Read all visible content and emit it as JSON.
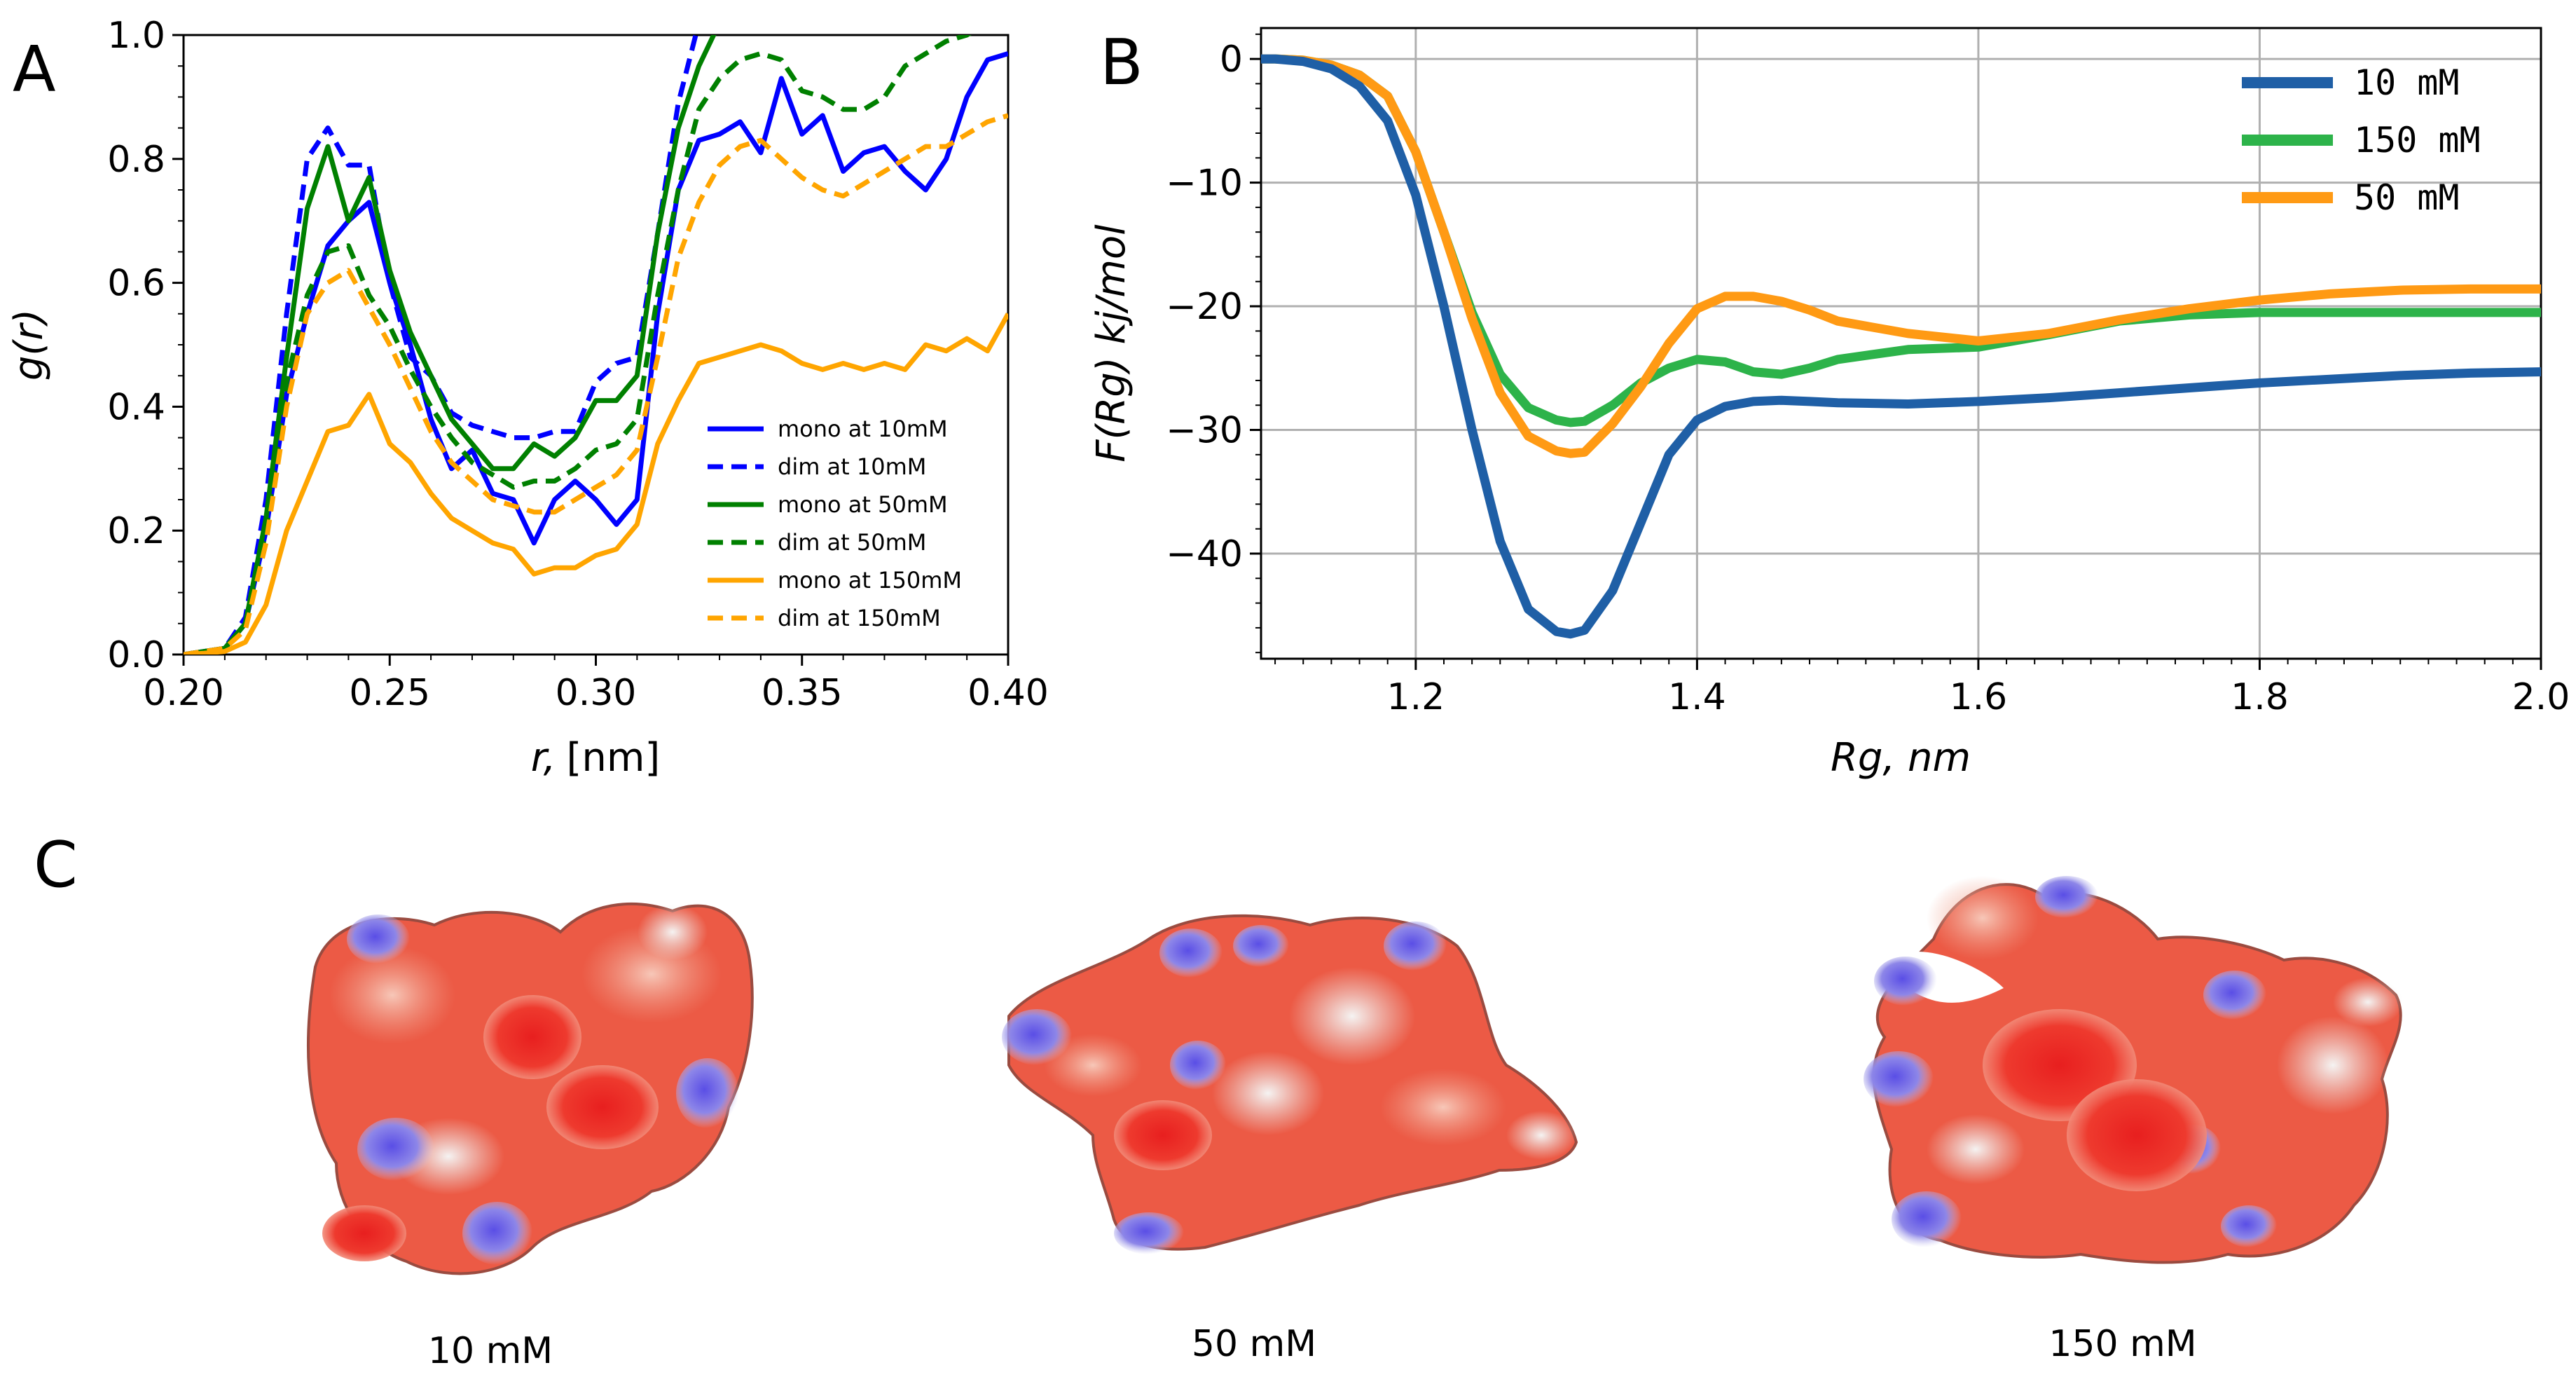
{
  "panels": {
    "a": "A",
    "b": "B",
    "c": "C"
  },
  "chart_data": [
    {
      "type": "line",
      "id": "A",
      "title": "",
      "xlabel_var": "r,",
      "xlabel_unit": "[nm]",
      "ylabel": "g(r)",
      "xlim": [
        0.2,
        0.4
      ],
      "ylim": [
        0.0,
        1.0
      ],
      "xticks": [
        "0.20",
        "0.25",
        "0.30",
        "0.35",
        "0.40"
      ],
      "yticks": [
        "0.0",
        "0.2",
        "0.4",
        "0.6",
        "0.8",
        "1.0"
      ],
      "legend_position": "lower-right",
      "x": [
        0.2,
        0.205,
        0.21,
        0.215,
        0.22,
        0.225,
        0.23,
        0.235,
        0.24,
        0.245,
        0.25,
        0.255,
        0.26,
        0.265,
        0.27,
        0.275,
        0.28,
        0.285,
        0.29,
        0.295,
        0.3,
        0.305,
        0.31,
        0.315,
        0.32,
        0.325,
        0.33,
        0.335,
        0.34,
        0.345,
        0.35,
        0.355,
        0.36,
        0.365,
        0.37,
        0.375,
        0.38,
        0.385,
        0.39,
        0.395,
        0.4
      ],
      "series": [
        {
          "name": "mono at 10mM",
          "color": "#0000ff",
          "dash": false,
          "values": [
            0,
            0.005,
            0.01,
            0.05,
            0.2,
            0.42,
            0.55,
            0.66,
            0.7,
            0.73,
            0.6,
            0.5,
            0.38,
            0.3,
            0.33,
            0.26,
            0.25,
            0.18,
            0.25,
            0.28,
            0.25,
            0.21,
            0.25,
            0.55,
            0.75,
            0.83,
            0.84,
            0.86,
            0.81,
            0.93,
            0.84,
            0.87,
            0.78,
            0.81,
            0.82,
            0.78,
            0.75,
            0.8,
            0.9,
            0.96,
            0.97
          ]
        },
        {
          "name": "dim at 10mM",
          "color": "#0000ff",
          "dash": true,
          "values": [
            0,
            0.005,
            0.01,
            0.06,
            0.25,
            0.55,
            0.8,
            0.85,
            0.79,
            0.79,
            0.6,
            0.48,
            0.45,
            0.39,
            0.37,
            0.36,
            0.35,
            0.35,
            0.36,
            0.36,
            0.44,
            0.47,
            0.48,
            0.68,
            0.89,
            1.02,
            1.02,
            1.02,
            1.02,
            1.02,
            1.02,
            1.02,
            1.02,
            1.02,
            1.02,
            1.02,
            1.02,
            1.02,
            1.02,
            1.02,
            1.02
          ]
        },
        {
          "name": "mono at 50mM",
          "color": "#008000",
          "dash": false,
          "values": [
            0,
            0.005,
            0.01,
            0.05,
            0.22,
            0.48,
            0.72,
            0.82,
            0.7,
            0.77,
            0.62,
            0.52,
            0.45,
            0.38,
            0.34,
            0.3,
            0.3,
            0.34,
            0.32,
            0.35,
            0.41,
            0.41,
            0.45,
            0.68,
            0.85,
            0.95,
            1.02,
            1.02,
            1.02,
            1.02,
            1.02,
            1.02,
            1.02,
            1.02,
            1.02,
            1.02,
            1.02,
            1.02,
            1.02,
            1.02,
            1.02
          ]
        },
        {
          "name": "dim at 50mM",
          "color": "#008000",
          "dash": true,
          "values": [
            0,
            0.005,
            0.01,
            0.05,
            0.2,
            0.44,
            0.58,
            0.65,
            0.66,
            0.58,
            0.53,
            0.46,
            0.4,
            0.35,
            0.31,
            0.29,
            0.27,
            0.28,
            0.28,
            0.3,
            0.33,
            0.34,
            0.38,
            0.58,
            0.75,
            0.88,
            0.93,
            0.96,
            0.97,
            0.96,
            0.91,
            0.9,
            0.88,
            0.88,
            0.9,
            0.95,
            0.97,
            0.99,
            1.0,
            1.02,
            1.02
          ]
        },
        {
          "name": "mono at 150mM",
          "color": "#ffa500",
          "dash": false,
          "values": [
            0,
            0.002,
            0.005,
            0.02,
            0.08,
            0.2,
            0.28,
            0.36,
            0.37,
            0.42,
            0.34,
            0.31,
            0.26,
            0.22,
            0.2,
            0.18,
            0.17,
            0.13,
            0.14,
            0.14,
            0.16,
            0.17,
            0.21,
            0.34,
            0.41,
            0.47,
            0.48,
            0.49,
            0.5,
            0.49,
            0.47,
            0.46,
            0.47,
            0.46,
            0.47,
            0.46,
            0.5,
            0.49,
            0.51,
            0.49,
            0.55
          ]
        },
        {
          "name": "dim at 150mM",
          "color": "#ffa500",
          "dash": true,
          "values": [
            0,
            0.005,
            0.01,
            0.04,
            0.18,
            0.4,
            0.55,
            0.6,
            0.62,
            0.56,
            0.5,
            0.43,
            0.36,
            0.31,
            0.28,
            0.25,
            0.24,
            0.23,
            0.23,
            0.25,
            0.27,
            0.29,
            0.33,
            0.48,
            0.64,
            0.73,
            0.79,
            0.82,
            0.83,
            0.8,
            0.77,
            0.75,
            0.74,
            0.76,
            0.78,
            0.8,
            0.82,
            0.82,
            0.84,
            0.86,
            0.87
          ]
        }
      ]
    },
    {
      "type": "line",
      "id": "B",
      "title": "",
      "xlabel": "Rg, nm",
      "ylabel": "F(Rg) kj/mol",
      "xlim": [
        1.09,
        2.0
      ],
      "ylim": [
        -48.5,
        2.5
      ],
      "xticks": [
        "1.2",
        "1.4",
        "1.6",
        "1.8",
        "2.0"
      ],
      "yticks": [
        "0",
        "−10",
        "−20",
        "−30",
        "−40"
      ],
      "grid": true,
      "legend_position": "upper-right",
      "x": [
        1.09,
        1.1,
        1.12,
        1.14,
        1.16,
        1.18,
        1.2,
        1.22,
        1.24,
        1.26,
        1.28,
        1.3,
        1.31,
        1.32,
        1.34,
        1.36,
        1.38,
        1.4,
        1.42,
        1.44,
        1.46,
        1.48,
        1.5,
        1.55,
        1.6,
        1.65,
        1.7,
        1.75,
        1.8,
        1.85,
        1.9,
        1.95,
        2.0
      ],
      "series": [
        {
          "name": "10 mM",
          "color": "#1f5fa6",
          "values": [
            0,
            0,
            -0.2,
            -0.8,
            -2.2,
            -5,
            -11,
            -20,
            -30,
            -39,
            -44.5,
            -46.3,
            -46.5,
            -46.2,
            -43,
            -37.5,
            -32,
            -29.2,
            -28.1,
            -27.7,
            -27.6,
            -27.7,
            -27.8,
            -27.9,
            -27.7,
            -27.4,
            -27,
            -26.6,
            -26.2,
            -25.9,
            -25.6,
            -25.4,
            -25.3
          ]
        },
        {
          "name": "150 mM",
          "color": "#2db34a",
          "values": [
            0,
            0,
            -0.1,
            -0.5,
            -1.3,
            -3,
            -7.5,
            -14,
            -20.5,
            -25.5,
            -28.2,
            -29.2,
            -29.4,
            -29.3,
            -28,
            -26.2,
            -25,
            -24.3,
            -24.5,
            -25.3,
            -25.5,
            -25,
            -24.3,
            -23.5,
            -23.3,
            -22.3,
            -21.2,
            -20.7,
            -20.5,
            -20.5,
            -20.5,
            -20.5,
            -20.5
          ]
        },
        {
          "name": "50 mM",
          "color": "#ff9a14",
          "values": [
            0,
            0,
            -0.1,
            -0.5,
            -1.3,
            -3,
            -7.5,
            -14,
            -21,
            -27,
            -30.5,
            -31.7,
            -31.9,
            -31.8,
            -29.5,
            -26.5,
            -23,
            -20.2,
            -19.2,
            -19.2,
            -19.6,
            -20.3,
            -21.2,
            -22.2,
            -22.8,
            -22.2,
            -21.1,
            -20.2,
            -19.5,
            -19,
            -18.7,
            -18.6,
            -18.6
          ]
        }
      ]
    }
  ],
  "structures": [
    {
      "caption": "10 mM"
    },
    {
      "caption": "50 mM"
    },
    {
      "caption": "150 mM"
    }
  ]
}
